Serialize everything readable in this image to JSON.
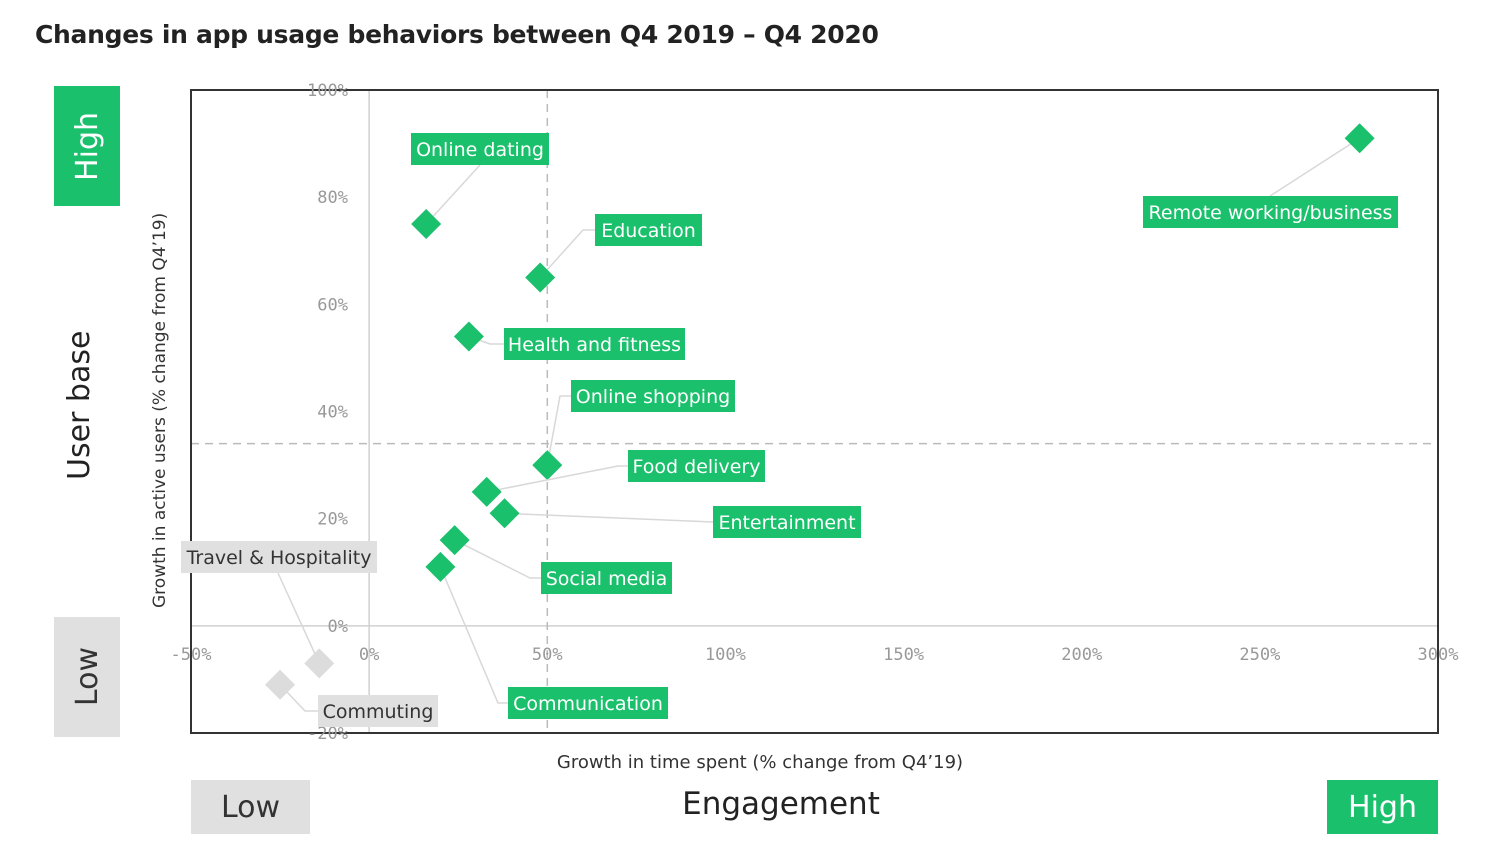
{
  "title": "Changes in app usage behaviors between Q4 2019 – Q4 2020",
  "quadrant_labels": {
    "y_high": "High",
    "y_low": "Low",
    "y_axis_name": "User base",
    "x_low": "Low",
    "x_high": "High",
    "x_axis_name": "Engagement"
  },
  "colors": {
    "highlight": "#1bc06c",
    "muted": "#e0e0e0",
    "muted_marker": "#dcdcdc"
  },
  "chart_data": {
    "type": "scatter",
    "title": "Changes in app usage behaviors between Q4 2019 – Q4 2020",
    "xlabel": "Growth in time spent (% change from Q4’19)",
    "ylabel": "Growth in active users  (% change from Q4’19)",
    "xlim": [
      -50,
      300
    ],
    "ylim": [
      -20,
      100
    ],
    "x_ticks": [
      "-50%",
      "0%",
      "50%",
      "100%",
      "150%",
      "200%",
      "250%",
      "300%"
    ],
    "x_tick_values": [
      -50,
      0,
      50,
      100,
      150,
      200,
      250,
      300
    ],
    "y_ticks": [
      "100%",
      "80%",
      "60%",
      "40%",
      "20%",
      "0%",
      "-20%"
    ],
    "y_tick_values": [
      100,
      80,
      60,
      40,
      20,
      0,
      -20
    ],
    "reference_lines": {
      "x_dashed": 50,
      "y_dashed": 34
    },
    "grid": false,
    "points": [
      {
        "label": "Online dating",
        "x": 16,
        "y": 75,
        "highlight": true
      },
      {
        "label": "Education",
        "x": 48,
        "y": 65,
        "highlight": true
      },
      {
        "label": "Health and fitness",
        "x": 28,
        "y": 54,
        "highlight": true
      },
      {
        "label": "Online shopping",
        "x": 50,
        "y": 30,
        "highlight": true
      },
      {
        "label": "Food delivery",
        "x": 33,
        "y": 25,
        "highlight": true
      },
      {
        "label": "Entertainment",
        "x": 38,
        "y": 21,
        "highlight": true
      },
      {
        "label": "Social media",
        "x": 24,
        "y": 16,
        "highlight": true
      },
      {
        "label": "Communication",
        "x": 20,
        "y": 11,
        "highlight": true
      },
      {
        "label": "Remote working/business",
        "x": 278,
        "y": 91,
        "highlight": true
      },
      {
        "label": "Travel & Hospitality",
        "x": -14,
        "y": -7,
        "highlight": false
      },
      {
        "label": "Commuting",
        "x": -25,
        "y": -11,
        "highlight": false
      }
    ]
  }
}
